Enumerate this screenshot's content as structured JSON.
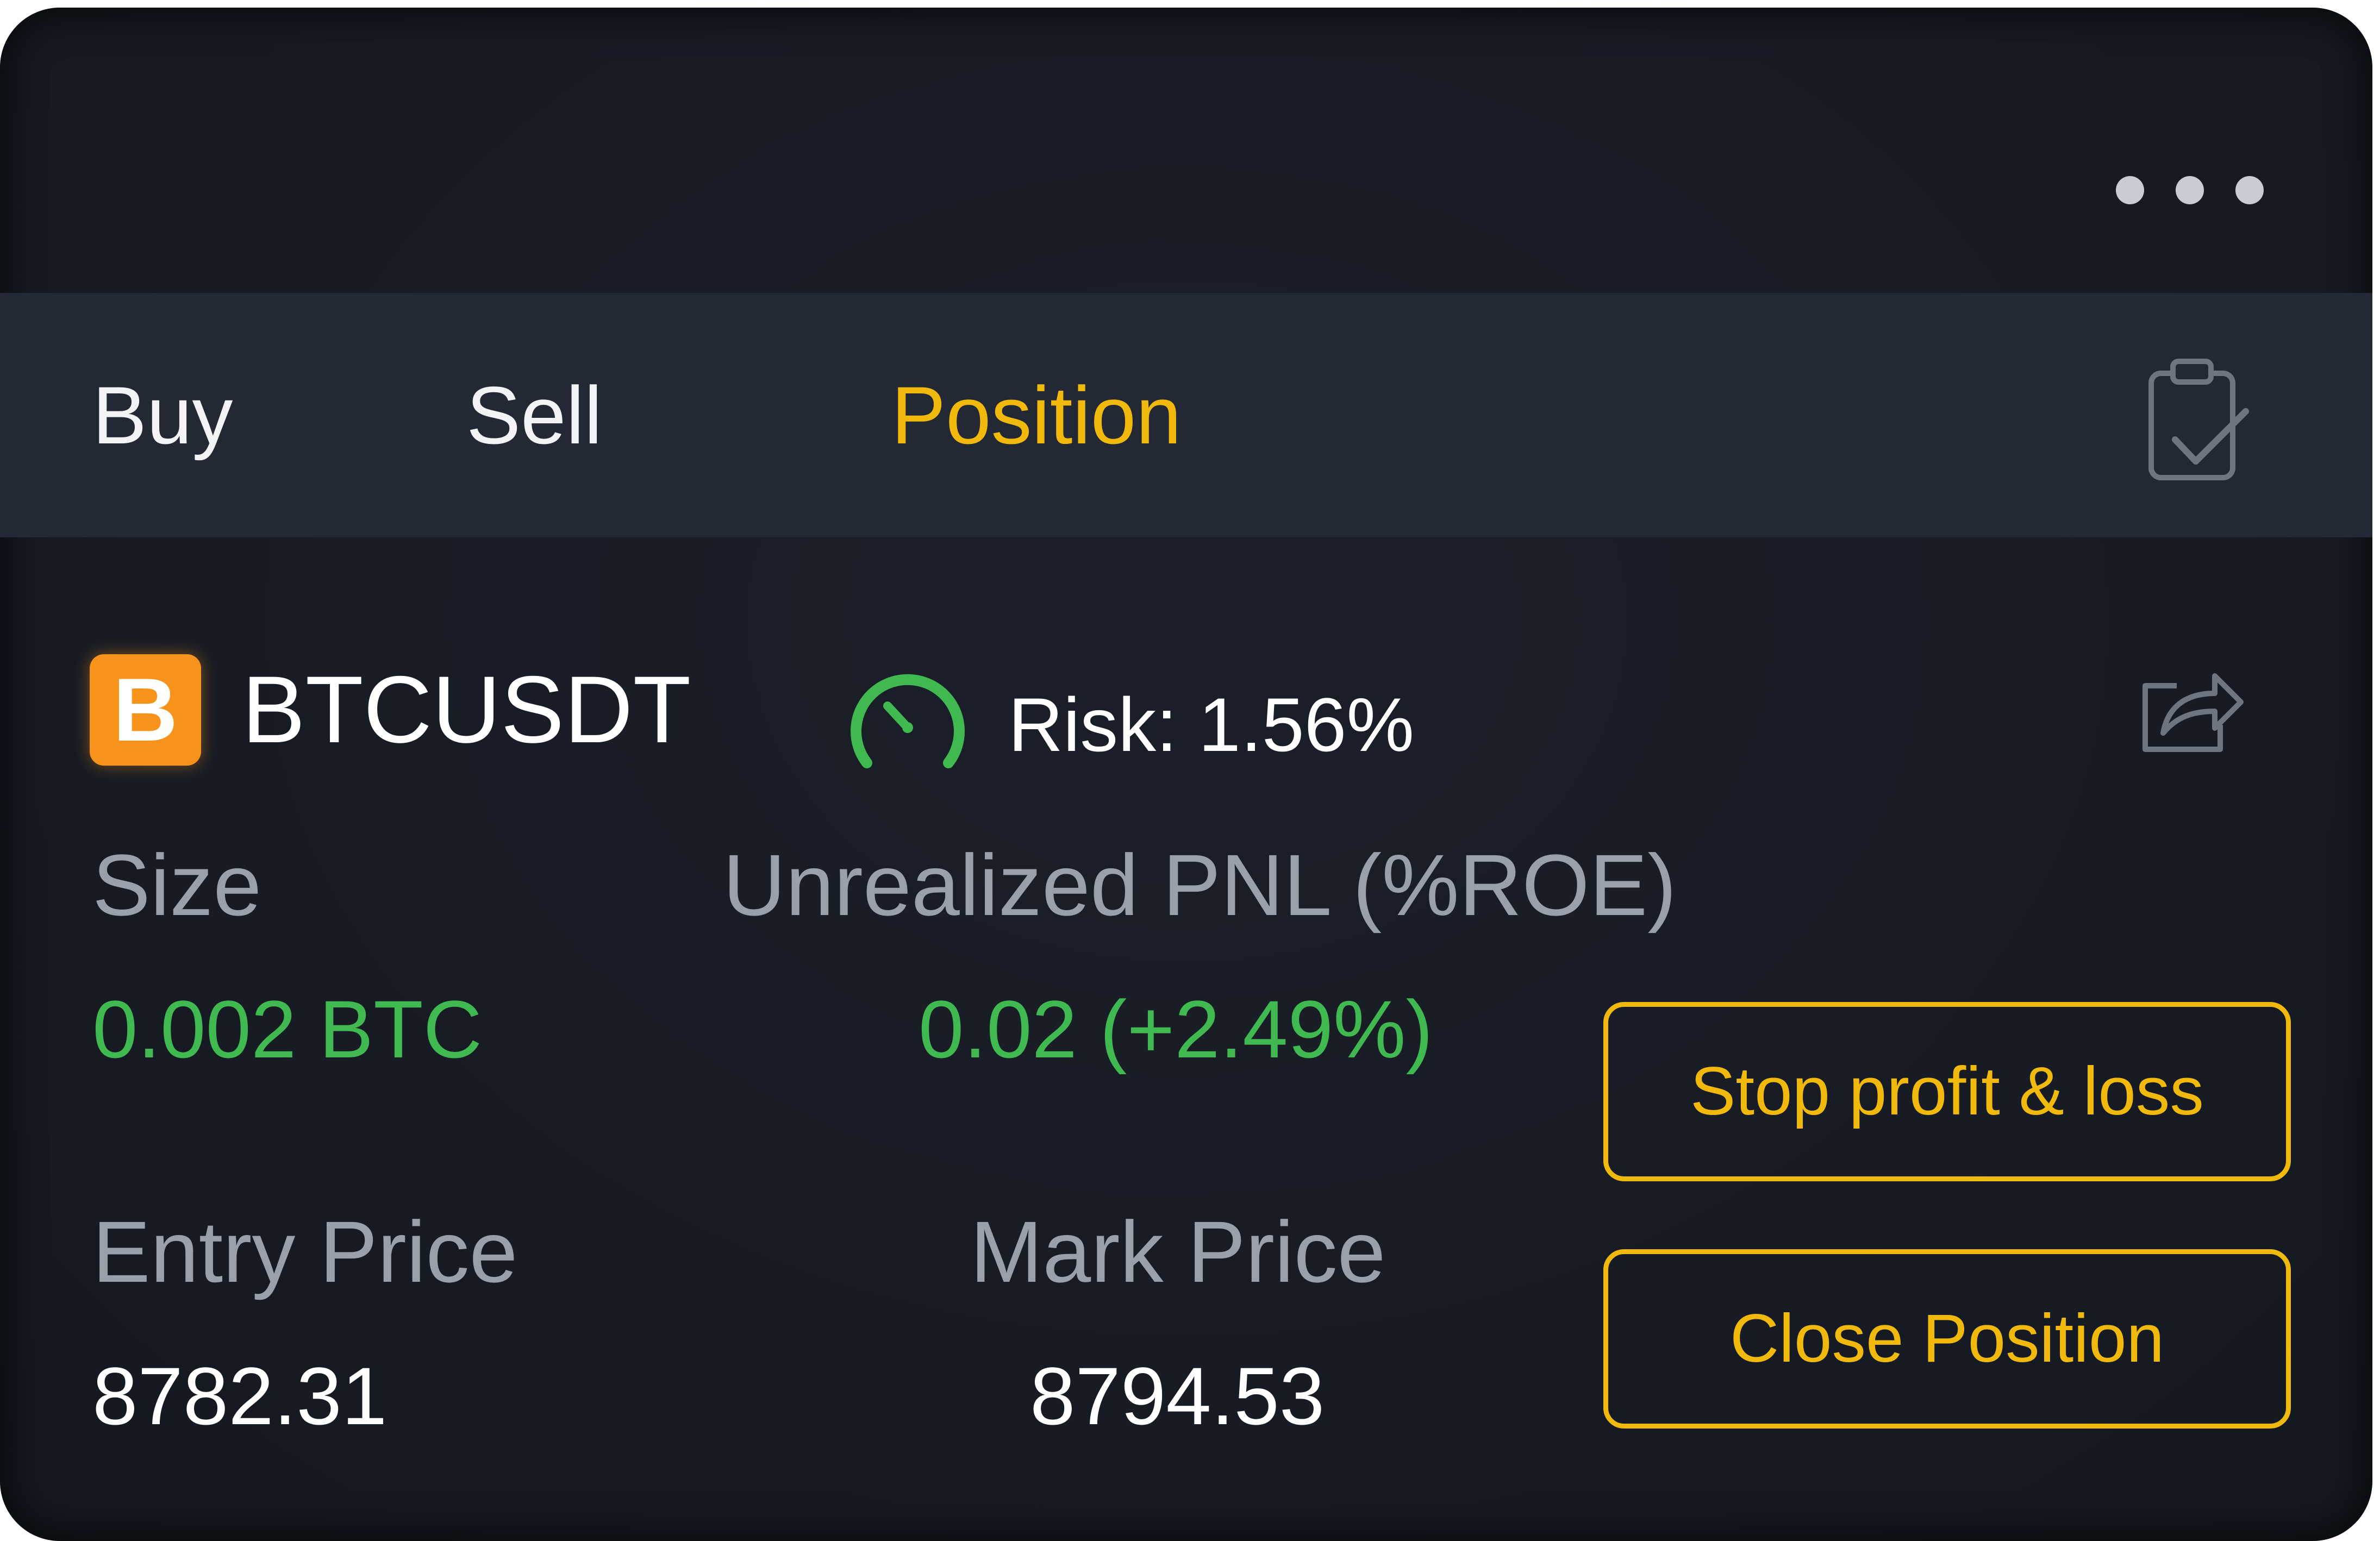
{
  "header": {
    "more_icon": "more-horizontal-icon"
  },
  "tabs": [
    {
      "label": "Buy",
      "active": false
    },
    {
      "label": "Sell",
      "active": false
    },
    {
      "label": "Position",
      "active": true
    }
  ],
  "tab_icon": "clipboard-check-icon",
  "position": {
    "coin_letter": "B",
    "symbol": "BTCUSDT",
    "risk_label": "Risk: 1.56%",
    "risk_icon": "gauge-icon",
    "share_icon": "share-icon",
    "size_label": "Size",
    "size_value": "0.002 BTC",
    "pnl_label": "Unrealized PNL (%ROE)",
    "pnl_value": "0.02 (+2.49%)",
    "entry_label": "Entry Price",
    "entry_value": "8782.31",
    "mark_label": "Mark Price",
    "mark_value": "8794.53"
  },
  "actions": {
    "stop_label": "Stop profit & loss",
    "close_label": "Close Position"
  },
  "colors": {
    "accent": "#f0b90b",
    "positive": "#3fb950",
    "coin": "#f7931a",
    "background": "#171b24",
    "tabbar": "#222834"
  }
}
